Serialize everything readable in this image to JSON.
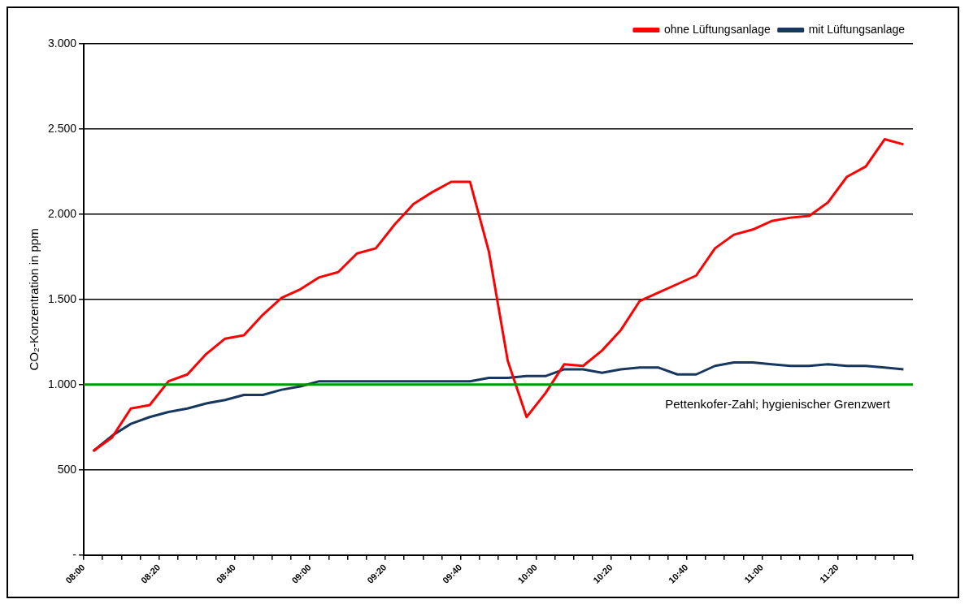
{
  "chart_data": {
    "type": "line",
    "ylabel": "CO₂-Konzentration in ppm",
    "legend": "top right",
    "grid": "y",
    "marker": "none",
    "line_style": "solid",
    "xlim": [
      8,
      11.6667
    ],
    "ylim": [
      0,
      3000
    ],
    "yticks": [
      {
        "value": 0,
        "label": "-"
      },
      {
        "value": 500,
        "label": "500"
      },
      {
        "value": 1000,
        "label": "1.000"
      },
      {
        "value": 1500,
        "label": "1.500"
      },
      {
        "value": 2000,
        "label": "2.000"
      },
      {
        "value": 2500,
        "label": "2.500"
      },
      {
        "value": 3000,
        "label": "3.000"
      }
    ],
    "xticks": [
      {
        "value": 8,
        "label": "08:00"
      },
      {
        "value": 8.0833,
        "label": null
      },
      {
        "value": 8.1667,
        "label": null
      },
      {
        "value": 8.25,
        "label": null
      },
      {
        "value": 8.3333,
        "label": "08:20"
      },
      {
        "value": 8.4167,
        "label": null
      },
      {
        "value": 8.5,
        "label": null
      },
      {
        "value": 8.5833,
        "label": null
      },
      {
        "value": 8.6667,
        "label": "08:40"
      },
      {
        "value": 8.75,
        "label": null
      },
      {
        "value": 8.8333,
        "label": null
      },
      {
        "value": 8.9167,
        "label": null
      },
      {
        "value": 9,
        "label": "09:00"
      },
      {
        "value": 9.0833,
        "label": null
      },
      {
        "value": 9.1667,
        "label": null
      },
      {
        "value": 9.25,
        "label": null
      },
      {
        "value": 9.3333,
        "label": "09:20"
      },
      {
        "value": 9.4167,
        "label": null
      },
      {
        "value": 9.5,
        "label": null
      },
      {
        "value": 9.5833,
        "label": null
      },
      {
        "value": 9.6667,
        "label": "09:40"
      },
      {
        "value": 9.75,
        "label": null
      },
      {
        "value": 9.8333,
        "label": null
      },
      {
        "value": 9.9167,
        "label": null
      },
      {
        "value": 10,
        "label": "10:00"
      },
      {
        "value": 10.0833,
        "label": null
      },
      {
        "value": 10.1667,
        "label": null
      },
      {
        "value": 10.25,
        "label": null
      },
      {
        "value": 10.3333,
        "label": "10:20"
      },
      {
        "value": 10.4167,
        "label": null
      },
      {
        "value": 10.5,
        "label": null
      },
      {
        "value": 10.5833,
        "label": null
      },
      {
        "value": 10.6667,
        "label": "10:40"
      },
      {
        "value": 10.75,
        "label": null
      },
      {
        "value": 10.8333,
        "label": null
      },
      {
        "value": 10.9167,
        "label": null
      },
      {
        "value": 11,
        "label": "11:00"
      },
      {
        "value": 11.0833,
        "label": null
      },
      {
        "value": 11.1667,
        "label": null
      },
      {
        "value": 11.25,
        "label": null
      },
      {
        "value": 11.3333,
        "label": "11:20"
      },
      {
        "value": 11.4167,
        "label": null
      },
      {
        "value": 11.5,
        "label": null
      },
      {
        "value": 11.5833,
        "label": null
      },
      {
        "value": 11.6667,
        "label": null
      }
    ],
    "x": [
      8.0417,
      8.125,
      8.2083,
      8.2917,
      8.375,
      8.4583,
      8.5417,
      8.625,
      8.7083,
      8.7917,
      8.875,
      8.9583,
      9.0417,
      9.125,
      9.2083,
      9.2917,
      9.375,
      9.4583,
      9.5417,
      9.625,
      9.7083,
      9.7917,
      9.875,
      9.9583,
      10.0417,
      10.125,
      10.2083,
      10.2917,
      10.375,
      10.4583,
      10.5417,
      10.625,
      10.7083,
      10.7917,
      10.875,
      10.9583,
      11.0417,
      11.125,
      11.2083,
      11.2917,
      11.375,
      11.4583,
      11.5417,
      11.625
    ],
    "series": [
      {
        "name": "ohne Lüftungsanlage",
        "color": "#ff0000",
        "values": [
          610,
          690,
          860,
          880,
          1020,
          1060,
          1180,
          1270,
          1290,
          1410,
          1510,
          1560,
          1630,
          1660,
          1770,
          1800,
          1940,
          2060,
          2130,
          2190,
          2190,
          1780,
          1140,
          810,
          950,
          1120,
          1110,
          1200,
          1320,
          1490,
          1540,
          1590,
          1640,
          1800,
          1880,
          1910,
          1960,
          1980,
          1990,
          2070,
          2220,
          2280,
          2440,
          2410
        ]
      },
      {
        "name": "mit Lüftungsanlage",
        "color": "#17375e",
        "values": [
          610,
          700,
          770,
          810,
          840,
          860,
          890,
          910,
          940,
          940,
          970,
          990,
          1020,
          1020,
          1020,
          1020,
          1020,
          1020,
          1020,
          1020,
          1020,
          1040,
          1040,
          1050,
          1050,
          1090,
          1090,
          1070,
          1090,
          1100,
          1100,
          1060,
          1060,
          1110,
          1130,
          1130,
          1120,
          1110,
          1110,
          1120,
          1110,
          1110,
          1100,
          1090
        ]
      }
    ],
    "ref_lines": [
      {
        "axis": "y",
        "value": 1000,
        "label": "Pettenkofer-Zahl; hygienischer Grenzwert",
        "color": "#009900"
      }
    ]
  }
}
